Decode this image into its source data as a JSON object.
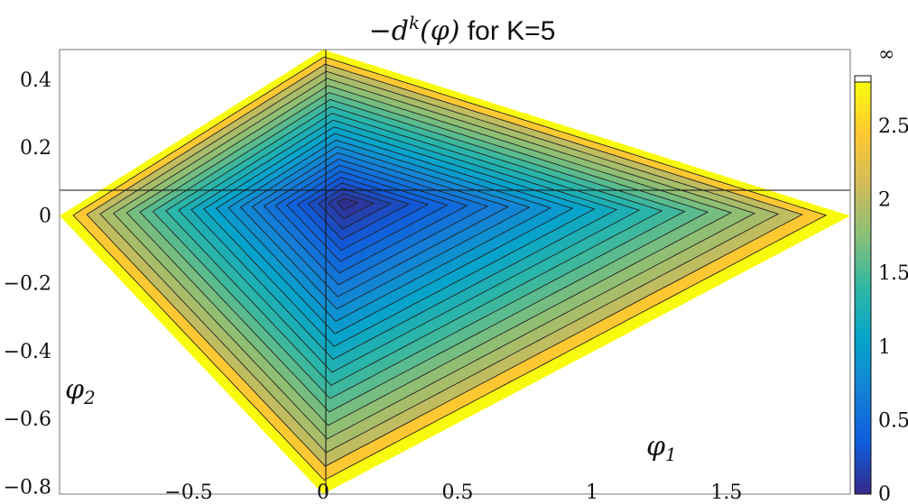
{
  "chart_data": {
    "type": "contour",
    "title_math": "−d",
    "title_sup": "k",
    "title_arg": "(φ)",
    "title_text": " for K=5",
    "x_var": "φ",
    "x_sub": "1",
    "y_var": "φ",
    "y_sub": "2",
    "xlim": [
      -0.98,
      1.96
    ],
    "ylim": [
      -0.82,
      0.49
    ],
    "x_ticks": [
      -0.5,
      0,
      0.5,
      1,
      1.5
    ],
    "x_tick_labels": [
      "−0.5",
      "0",
      "0.5",
      "1",
      "1.5"
    ],
    "y_ticks": [
      0.4,
      0.2,
      0,
      -0.2,
      -0.4,
      -0.6,
      -0.8
    ],
    "y_tick_labels": [
      "0.4",
      "0.2",
      "0",
      "−0.2",
      "−0.4",
      "−0.6",
      "−0.8"
    ],
    "colorbar": {
      "range": [
        0,
        2.8
      ],
      "ticks": [
        0,
        0.5,
        1,
        1.5,
        2,
        2.5
      ],
      "tick_labels": [
        "0",
        "0.5",
        "1",
        "1.5",
        "2",
        "2.5"
      ],
      "top_label": "∞",
      "colormap": [
        "#352a87",
        "#0f5cdd",
        "#1481d6",
        "#06a4ca",
        "#2eb7a4",
        "#87bf77",
        "#d1bb59",
        "#fec832",
        "#f9fb0e"
      ]
    },
    "domain_vertices": [
      [
        -0.98,
        0.0
      ],
      [
        0.0,
        0.49
      ],
      [
        1.96,
        0.0
      ],
      [
        0.0,
        -0.82
      ]
    ],
    "minimum_at": [
      0.08,
      0.04
    ],
    "contour_levels": 24
  }
}
